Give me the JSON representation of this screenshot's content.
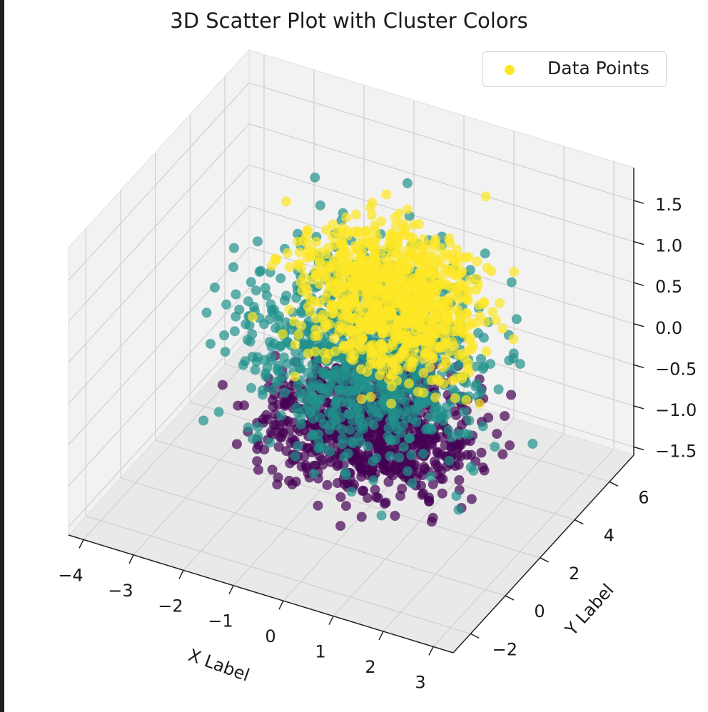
{
  "chart_data": {
    "type": "scatter",
    "projection": "3d",
    "title": "3D Scatter Plot with Cluster Colors",
    "xlabel": "X Label",
    "ylabel": "Y Label",
    "zlabel": "",
    "x_ticks": [
      "−4",
      "−3",
      "−2",
      "−1",
      "0",
      "1",
      "2",
      "3"
    ],
    "y_ticks": [
      "−2",
      "0",
      "2",
      "4",
      "6"
    ],
    "z_ticks": [
      "−1.5",
      "−1.0",
      "−0.5",
      "0.0",
      "0.5",
      "1.0",
      "1.5"
    ],
    "xlim": [
      -4.3,
      3.4
    ],
    "ylim": [
      -3.0,
      7.4
    ],
    "zlim": [
      -1.6,
      1.9
    ],
    "grid": true,
    "legend": {
      "label": "Data Points",
      "placement": "upper right",
      "marker_color": "#fde725"
    },
    "colormap": "viridis",
    "clusters": [
      {
        "color": "#440154",
        "x_range": [
          -3.0,
          2.5
        ],
        "y_range": [
          -1.0,
          6.5
        ],
        "z_range": [
          -1.5,
          -0.2
        ]
      },
      {
        "color": "#21918c",
        "x_range": [
          -3.5,
          3.0
        ],
        "y_range": [
          -1.5,
          6.5
        ],
        "z_range": [
          -1.5,
          1.8
        ]
      },
      {
        "color": "#fde725",
        "x_range": [
          -2.5,
          2.5
        ],
        "y_range": [
          0.5,
          6.0
        ],
        "z_range": [
          -0.5,
          1.8
        ]
      }
    ]
  }
}
